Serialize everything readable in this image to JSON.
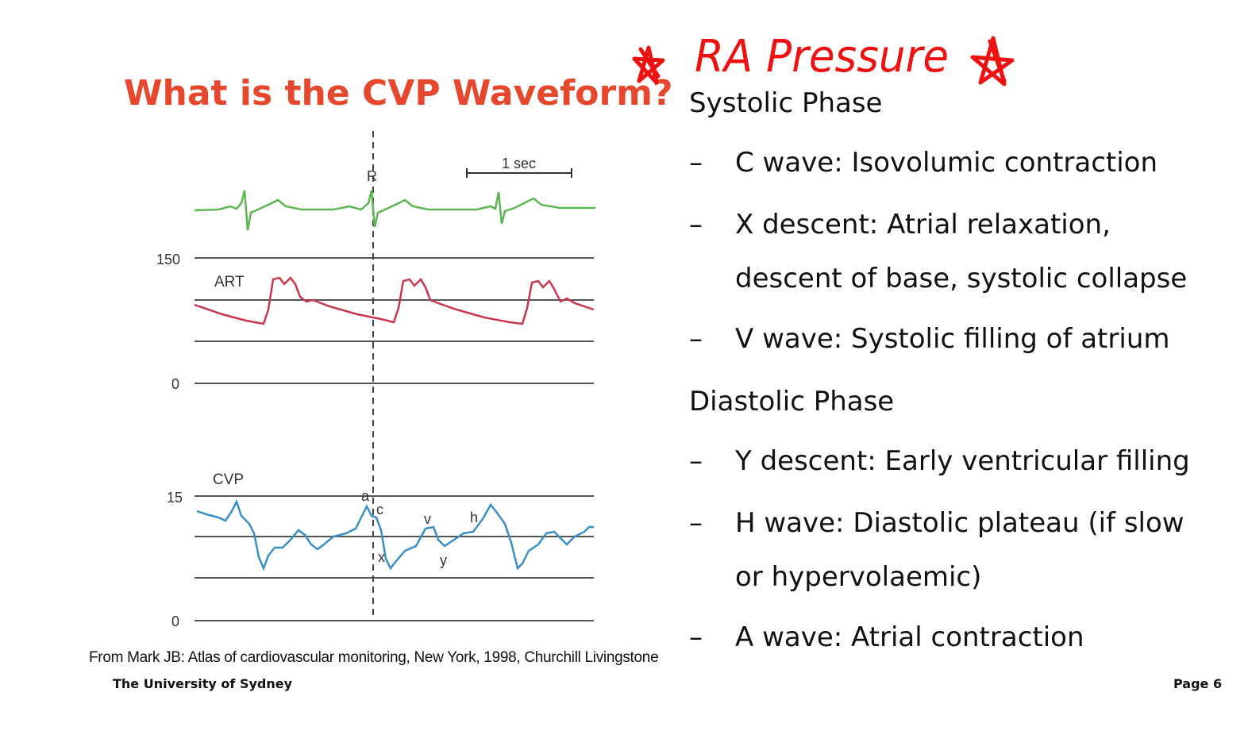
{
  "title": "What is the CVP Waveform?",
  "annotation": {
    "text": "RA Pressure"
  },
  "systolic": {
    "heading": "Systolic Phase",
    "items": [
      {
        "dash": "–",
        "lines": [
          "C wave: Isovolumic contraction"
        ]
      },
      {
        "dash": "–",
        "lines": [
          "X descent: Atrial relaxation,",
          "descent of base, systolic collapse"
        ]
      },
      {
        "dash": "–",
        "lines": [
          "V wave: Systolic filling of atrium"
        ]
      }
    ]
  },
  "diastolic": {
    "heading": "Diastolic Phase",
    "items": [
      {
        "dash": "–",
        "lines": [
          "Y descent: Early ventricular filling"
        ]
      },
      {
        "dash": "–",
        "lines": [
          "H wave: Diastolic plateau (if slow",
          "or hypervolaemic)"
        ]
      },
      {
        "dash": "–",
        "lines": [
          "A wave: Atrial contraction"
        ]
      }
    ]
  },
  "figure": {
    "scale_label": "1 sec",
    "r_label": "R",
    "art_label": "ART",
    "cvp_label": "CVP",
    "art_ticks": [
      "150",
      "0"
    ],
    "cvp_ticks": [
      "15",
      "0"
    ],
    "wave_labels": {
      "a": "a",
      "c": "c",
      "x": "x",
      "v": "v",
      "h": "h",
      "y": "y"
    },
    "colors": {
      "ecg": "#5db653",
      "art": "#c8374f",
      "cvp": "#3a8fc4",
      "grid": "#555555"
    }
  },
  "source": "From Mark JB: Atlas of cardiovascular monitoring, New York, 1998, Churchill Livingstone",
  "footer": {
    "org": "The University of Sydney",
    "page": "Page 6"
  }
}
